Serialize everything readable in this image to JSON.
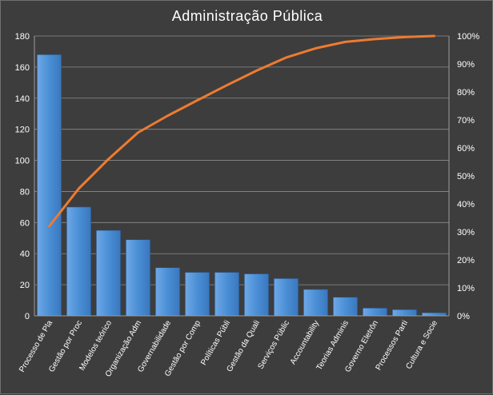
{
  "chart_data": {
    "type": "bar",
    "title": "Administração  Pública",
    "categories": [
      "Processo de Pla",
      "Gestão por Proc",
      "Modelos teórico",
      "Organização Adm",
      "Governabilidade",
      "Gestão por Comp",
      "Políticas Públi",
      "Gestão da Quali",
      "Serviços Públic",
      "Accountability",
      "Teorias Adminis",
      "Governo Eletrôn",
      "Processos Parti",
      "Cultura e Socie"
    ],
    "series": [
      {
        "type": "bar",
        "axis": "left",
        "values": [
          168,
          70,
          55,
          49,
          31,
          28,
          28,
          27,
          24,
          17,
          12,
          5,
          4,
          2
        ],
        "color": "#4a8fd6"
      },
      {
        "type": "line",
        "axis": "right",
        "values": [
          32,
          45.5,
          56,
          65.5,
          71.5,
          77,
          82.4,
          87.6,
          92.3,
          95.6,
          97.9,
          98.9,
          99.6,
          100
        ],
        "color": "#ee7b30"
      }
    ],
    "ylim": [
      0,
      180
    ],
    "yticks": [
      "0",
      "20",
      "40",
      "60",
      "80",
      "100",
      "120",
      "140",
      "160",
      "180"
    ],
    "y2lim": [
      0,
      100
    ],
    "y2ticks": [
      "0%",
      "10%",
      "20%",
      "30%",
      "40%",
      "50%",
      "60%",
      "70%",
      "80%",
      "90%",
      "100%"
    ],
    "grid": true,
    "colors": {
      "background": "#3d3d3d",
      "grid": "#8c8c8c",
      "text": "#ffffff"
    }
  }
}
